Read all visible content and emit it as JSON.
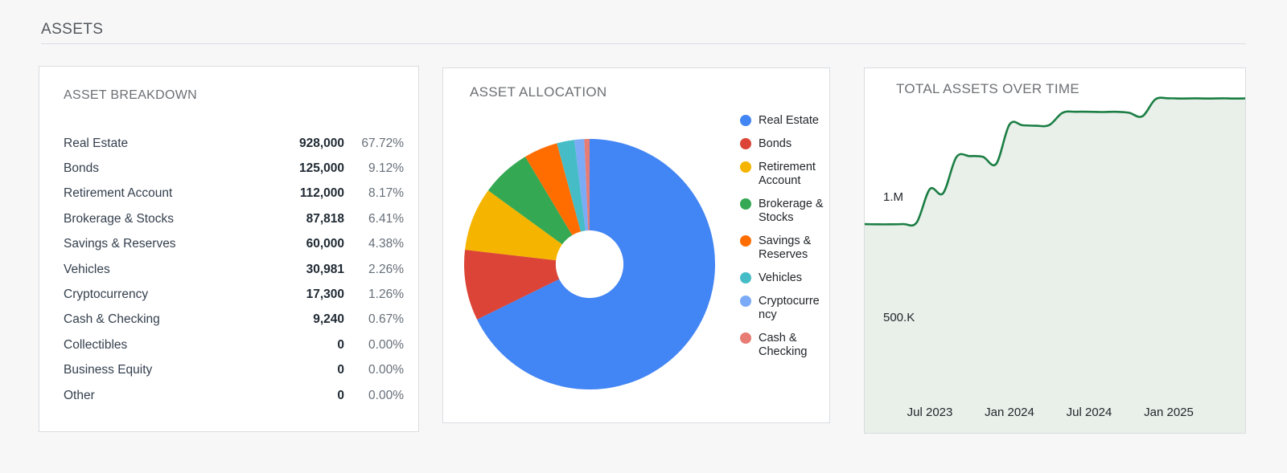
{
  "page": {
    "header": "ASSETS"
  },
  "breakdown": {
    "title": "ASSET BREAKDOWN",
    "rows": [
      {
        "name": "Real Estate",
        "value": "928,000",
        "percent": "67.72%"
      },
      {
        "name": "Bonds",
        "value": "125,000",
        "percent": "9.12%"
      },
      {
        "name": "Retirement Account",
        "value": "112,000",
        "percent": "8.17%"
      },
      {
        "name": "Brokerage & Stocks",
        "value": "87,818",
        "percent": "6.41%"
      },
      {
        "name": "Savings & Reserves",
        "value": "60,000",
        "percent": "4.38%"
      },
      {
        "name": "Vehicles",
        "value": "30,981",
        "percent": "2.26%"
      },
      {
        "name": "Cryptocurrency",
        "value": "17,300",
        "percent": "1.26%"
      },
      {
        "name": "Cash & Checking",
        "value": "9,240",
        "percent": "0.67%"
      },
      {
        "name": "Collectibles",
        "value": "0",
        "percent": "0.00%"
      },
      {
        "name": "Business Equity",
        "value": "0",
        "percent": "0.00%"
      },
      {
        "name": "Other",
        "value": "0",
        "percent": "0.00%"
      }
    ]
  },
  "allocation": {
    "title": "ASSET ALLOCATION",
    "legend_lines": [
      "Real Estate",
      "Bonds",
      "Retirement\nAccount",
      "Brokerage &\nStocks",
      "Savings &\nReserves",
      "Vehicles",
      "Cryptocurre\nncy",
      "Cash &\nChecking"
    ]
  },
  "total_assets": {
    "title": "TOTAL ASSETS OVER TIME"
  },
  "chart_data": [
    {
      "type": "pie",
      "title": "ASSET ALLOCATION",
      "donut_hole_ratio": 0.27,
      "legend_position": "right",
      "labels": [
        "Real Estate",
        "Bonds",
        "Retirement Account",
        "Brokerage & Stocks",
        "Savings & Reserves",
        "Vehicles",
        "Cryptocurrency",
        "Cash & Checking"
      ],
      "values": [
        928000,
        125000,
        112000,
        87818,
        60000,
        30981,
        17300,
        9240
      ],
      "percents": [
        67.72,
        9.12,
        8.17,
        6.41,
        4.38,
        2.26,
        1.26,
        0.67
      ],
      "colors": [
        "#4285F4",
        "#DB4437",
        "#F4B400",
        "#34A853",
        "#FF6D01",
        "#46BDC6",
        "#7BAAF7",
        "#E67C73"
      ]
    },
    {
      "type": "area",
      "title": "TOTAL ASSETS OVER TIME",
      "x": [
        "Feb 2023",
        "Mar 2023",
        "Apr 2023",
        "May 2023",
        "Jun 2023",
        "Jul 2023",
        "Aug 2023",
        "Sep 2023",
        "Oct 2023",
        "Nov 2023",
        "Dec 2023",
        "Jan 2024",
        "Feb 2024",
        "Mar 2024",
        "Apr 2024",
        "May 2024",
        "Jun 2024",
        "Jul 2024",
        "Aug 2024",
        "Sep 2024",
        "Oct 2024",
        "Nov 2024",
        "Dec 2024",
        "Jan 2025",
        "Feb 2025",
        "Mar 2025",
        "Apr 2025",
        "May 2025",
        "Jun 2025",
        "Jul 2025"
      ],
      "values": [
        890000,
        889000,
        889000,
        890000,
        896000,
        1035000,
        1018000,
        1168000,
        1172000,
        1169000,
        1140000,
        1303000,
        1300000,
        1298000,
        1301000,
        1352000,
        1356000,
        1356000,
        1355000,
        1356000,
        1352000,
        1337000,
        1408000,
        1412000,
        1411000,
        1412000,
        1411000,
        1412000,
        1411000,
        1412000
      ],
      "x_ticks": [
        {
          "label": "Jul 2023",
          "index": 5
        },
        {
          "label": "Jan 2024",
          "index": 11
        },
        {
          "label": "Jul 2024",
          "index": 17
        },
        {
          "label": "Jan 2025",
          "index": 23
        }
      ],
      "y_ticks": [
        {
          "label": "1.M",
          "value": 1000000
        },
        {
          "label": "500.K",
          "value": 500000
        }
      ],
      "ylim": [
        0,
        1537000
      ],
      "line_color": "#1B7E44",
      "fill_color": "#E9F0EA",
      "grid": false
    }
  ]
}
